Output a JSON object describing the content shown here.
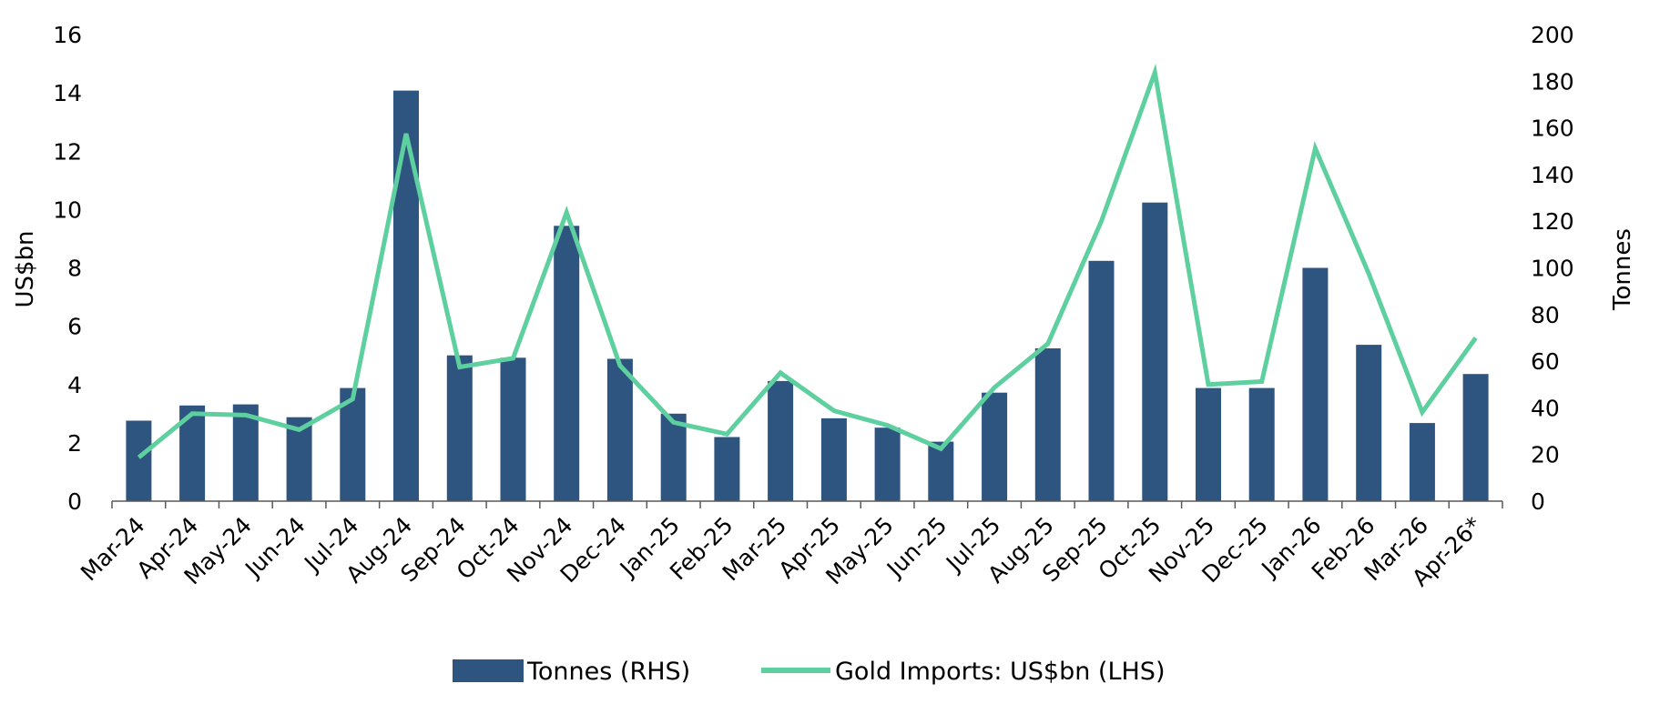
{
  "chart_data": {
    "type": "bar",
    "categories": [
      "Mar-24",
      "Apr-24",
      "May-24",
      "Jun-24",
      "Jul-24",
      "Aug-24",
      "Sep-24",
      "Oct-24",
      "Nov-24",
      "Dec-24",
      "Jan-25",
      "Feb-25",
      "Mar-25",
      "Apr-25",
      "May-25",
      "Jun-25",
      "Jul-25",
      "Aug-25",
      "Sep-25",
      "Oct-25",
      "Nov-25",
      "Dec-25",
      "Jan-26",
      "Feb-26",
      "Mar-26",
      "Apr-26*"
    ],
    "series": [
      {
        "name": "Tonnes (RHS)",
        "type": "bar",
        "axis": "right",
        "color": "#2e5480",
        "values": [
          34.5,
          41,
          41.5,
          36,
          48.5,
          176,
          62.5,
          61.5,
          118,
          61,
          37.5,
          27.5,
          51.5,
          35.5,
          31.5,
          25.5,
          46.5,
          65.5,
          103,
          128,
          48.5,
          48.5,
          100,
          67,
          33.5,
          54.5
        ]
      },
      {
        "name": "Gold Imports: US$bn (LHS)",
        "type": "line",
        "axis": "left",
        "color": "#5ecf9f",
        "values": [
          1.5,
          3.0,
          2.95,
          2.45,
          3.5,
          12.6,
          4.6,
          4.9,
          9.9,
          4.65,
          2.7,
          2.3,
          4.4,
          3.1,
          2.6,
          1.8,
          3.9,
          5.4,
          9.6,
          14.7,
          4.0,
          4.1,
          12.1,
          7.8,
          3.05,
          5.6
        ]
      }
    ],
    "ylabel_left": "US$bn",
    "ylabel_right": "Tonnes",
    "ylim_left": [
      0,
      16
    ],
    "ylim_right": [
      0,
      200
    ],
    "yticks_left": [
      "0",
      "2",
      "4",
      "6",
      "8",
      "10",
      "12",
      "14",
      "16"
    ],
    "yticks_right": [
      "0",
      "20",
      "40",
      "60",
      "80",
      "100",
      "120",
      "140",
      "160",
      "180",
      "200"
    ],
    "grid": false,
    "legend_position": "bottom"
  }
}
